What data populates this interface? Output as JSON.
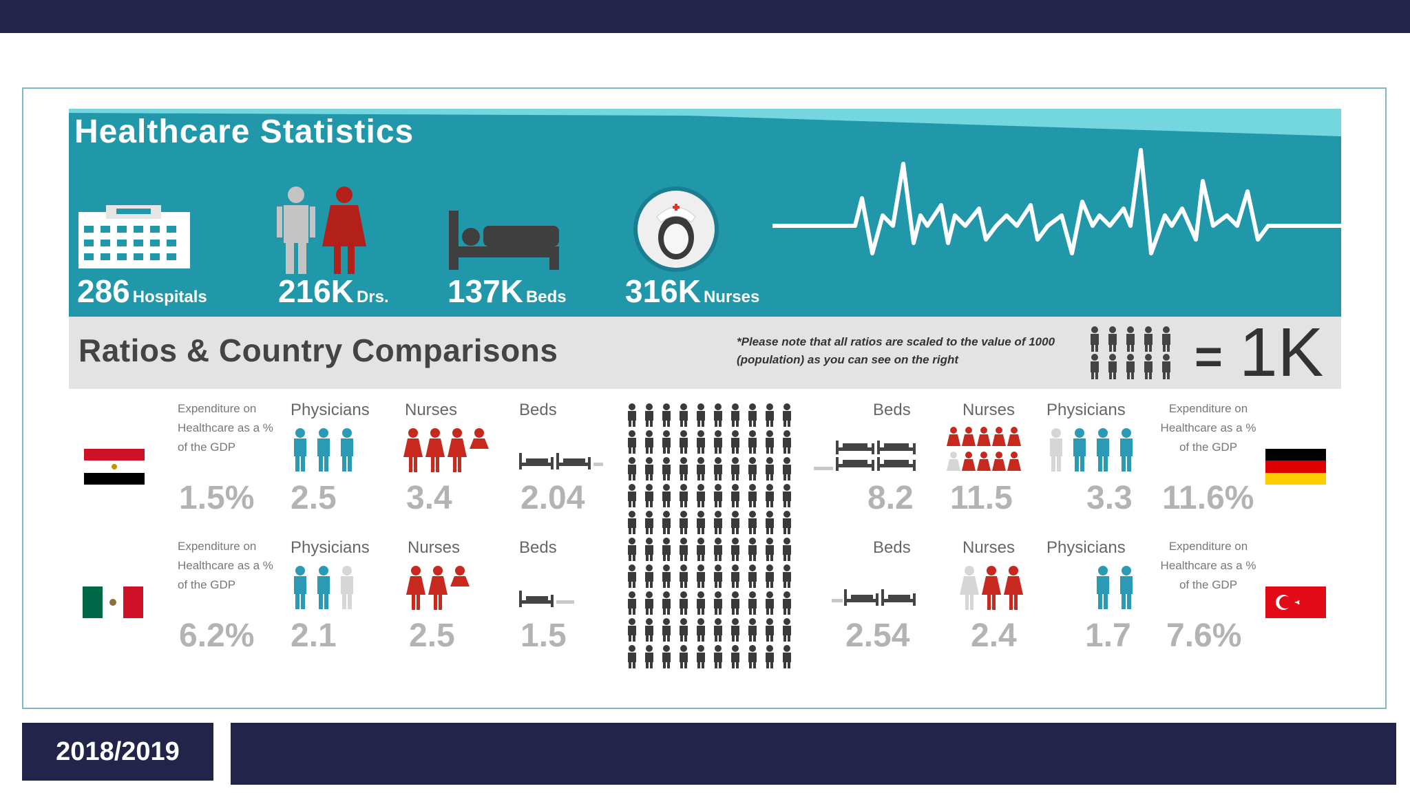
{
  "infographic": {
    "title": "Healthcare Statistics",
    "stats": [
      {
        "value": "286",
        "label": "Hospitals"
      },
      {
        "value": "216K",
        "label": "Drs."
      },
      {
        "value": "137K",
        "label": "Beds"
      },
      {
        "value": "316K",
        "label": "Nurses"
      }
    ],
    "ratios_title": "Ratios & Country Comparisons",
    "note": "*Please note that all ratios are scaled to the value of 1000 (population) as you can see on the right",
    "scale_value": "1K",
    "scale_equals": "=",
    "labels": {
      "expenditure": "Expenditure on Healthcare as a % of the GDP",
      "physicians": "Physicians",
      "nurses": "Nurses",
      "beds": "Beds"
    },
    "countries": {
      "egypt": {
        "expenditure": "1.5%",
        "physicians": "2.5",
        "nurses": "3.4",
        "beds": "2.04"
      },
      "mexico": {
        "expenditure": "6.2%",
        "physicians": "2.1",
        "nurses": "2.5",
        "beds": "1.5"
      },
      "germany": {
        "beds": "8.2",
        "nurses": "11.5",
        "physicians": "3.3",
        "expenditure": "11.6%"
      },
      "turkey": {
        "beds": "2.54",
        "nurses": "2.4",
        "physicians": "1.7",
        "expenditure": "7.6%"
      }
    },
    "colors": {
      "teal": "#2198aa",
      "red": "#c8291e",
      "blue": "#2a9ab5",
      "gray": "#b3b3b3"
    }
  },
  "footer": {
    "year": "2018/2019"
  }
}
